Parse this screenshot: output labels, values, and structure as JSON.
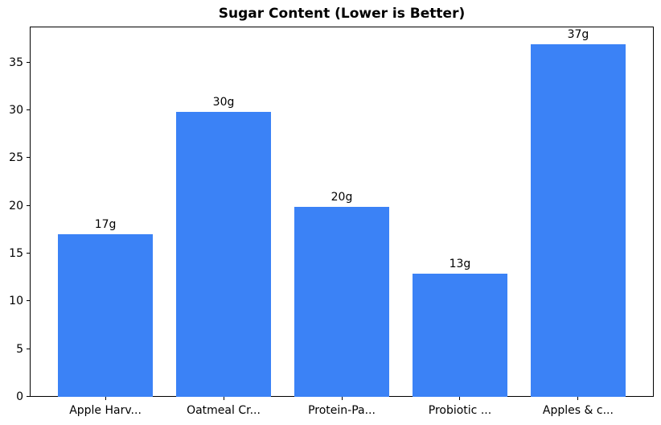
{
  "chart_data": {
    "type": "bar",
    "title": "Sugar Content (Lower is Better)",
    "categories": [
      "Apple Harv...",
      "Oatmeal Cr...",
      "Protein-Pa...",
      "Probiotic ...",
      "Apples & c..."
    ],
    "values": [
      17.0,
      29.8,
      19.9,
      12.9,
      36.9
    ],
    "bar_labels": [
      "17g",
      "30g",
      "20g",
      "13g",
      "37g"
    ],
    "yticks": [
      0,
      5,
      10,
      15,
      20,
      25,
      30,
      35
    ],
    "ylim": [
      0,
      38.75
    ],
    "xlabel": "",
    "ylabel": "",
    "grid": false,
    "legend": "none",
    "bar_color": "#3b82f6",
    "bar_width_ratio": 0.8,
    "x_margin_units": 0.64,
    "text_color": "#000000",
    "background": "#ffffff"
  }
}
